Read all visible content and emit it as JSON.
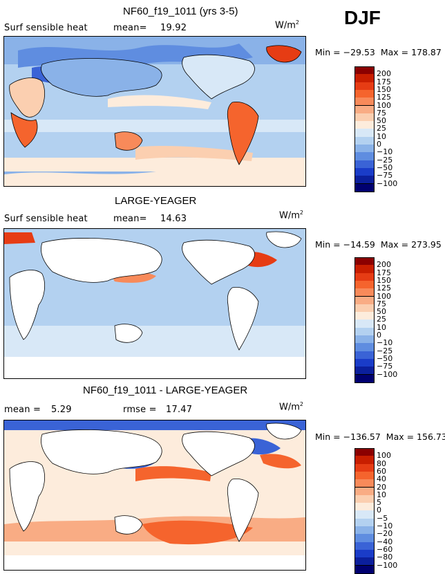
{
  "season": "DJF",
  "units": {
    "base": "W/m",
    "exp": "2"
  },
  "panels": [
    {
      "title": "NF60_f19_1011 (yrs 3-5)",
      "left_label": "Surf sensible heat",
      "mean_label": "mean=",
      "mean_value": "19.92",
      "min_label": "Min = ",
      "min_value": "−29.53",
      "max_label": "Max = ",
      "max_value": "178.87",
      "levels": [
        "200",
        "175",
        "150",
        "125",
        "100",
        "75",
        "50",
        "25",
        "10",
        "0",
        "−10",
        "−25",
        "−50",
        "−75",
        "−100"
      ]
    },
    {
      "title": "LARGE-YEAGER",
      "left_label": "Surf sensible heat",
      "mean_label": "mean=",
      "mean_value": "14.63",
      "min_label": "Min = ",
      "min_value": "−14.59",
      "max_label": "Max = ",
      "max_value": "273.95",
      "levels": [
        "200",
        "175",
        "150",
        "125",
        "100",
        "75",
        "50",
        "25",
        "10",
        "0",
        "−10",
        "−25",
        "−50",
        "−75",
        "−100"
      ]
    },
    {
      "title": "NF60_f19_1011 - LARGE-YEAGER",
      "left_label": "mean =",
      "mean_label": "",
      "mean_value": "5.29",
      "rmse_label": "rmse =",
      "rmse_value": "17.47",
      "min_label": "Min = ",
      "min_value": "−136.57",
      "max_label": "Max = ",
      "max_value": "156.73",
      "levels": [
        "100",
        "80",
        "60",
        "40",
        "20",
        "10",
        "5",
        "0",
        "−5",
        "−10",
        "−20",
        "−40",
        "−60",
        "−80",
        "−100"
      ]
    }
  ],
  "colors": {
    "scale": [
      "#8b0000",
      "#c81e00",
      "#e63c14",
      "#f5642d",
      "#f88a5a",
      "#f9ac84",
      "#fbcfb0",
      "#fdecdc",
      "#d8e8f7",
      "#b3d1f0",
      "#8ab2e8",
      "#5f8de0",
      "#3a63d6",
      "#1a3cc8",
      "#0b1f9c",
      "#000070"
    ],
    "land": "#ffffff",
    "coast": "#000000"
  }
}
